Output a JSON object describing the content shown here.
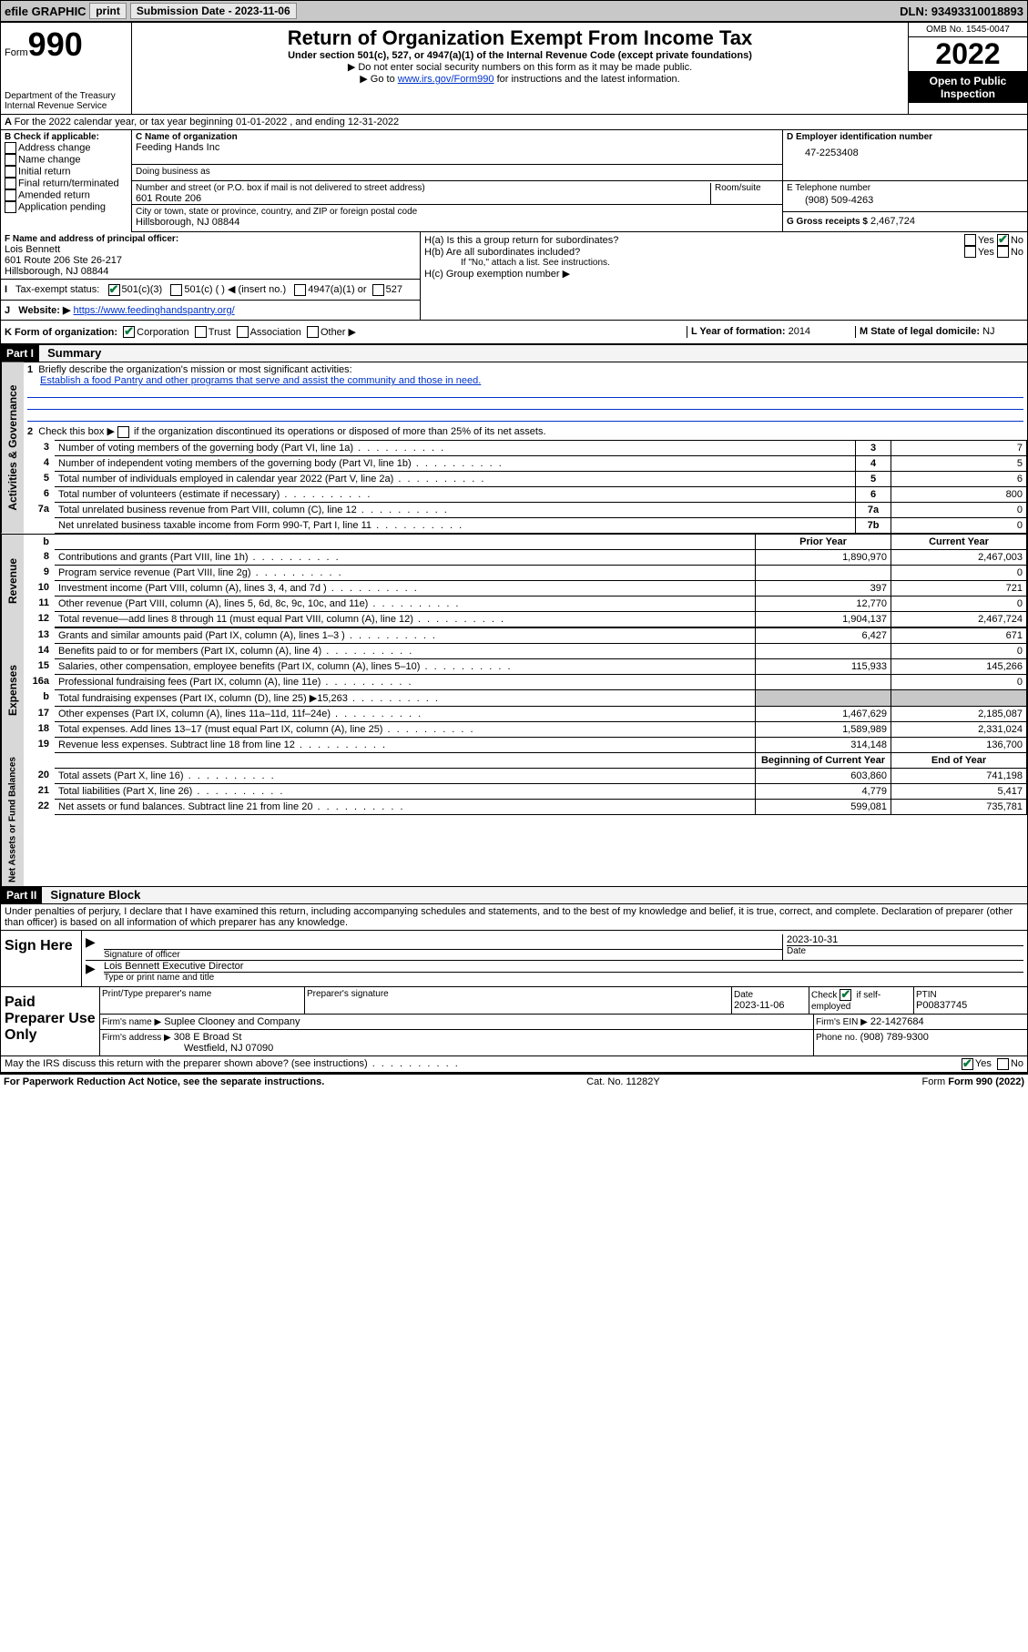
{
  "top_bar": {
    "efile": "efile GRAPHIC",
    "print": "print",
    "sub_label": "Submission Date -",
    "sub_date": "2023-11-06",
    "dln": "DLN: 93493310018893"
  },
  "header": {
    "form_word": "Form",
    "form_num": "990",
    "dept": "Department of the Treasury Internal Revenue Service",
    "title": "Return of Organization Exempt From Income Tax",
    "subtitle": "Under section 501(c), 527, or 4947(a)(1) of the Internal Revenue Code (except private foundations)",
    "note1": "▶ Do not enter social security numbers on this form as it may be made public.",
    "note2_pre": "▶ Go to ",
    "note2_link": "www.irs.gov/Form990",
    "note2_post": " for instructions and the latest information.",
    "omb": "OMB No. 1545-0047",
    "year": "2022",
    "open": "Open to Public Inspection"
  },
  "line_a": "For the 2022 calendar year, or tax year beginning 01-01-2022   , and ending 12-31-2022",
  "box_b": {
    "title": "B Check if applicable:",
    "items": [
      "Address change",
      "Name change",
      "Initial return",
      "Final return/terminated",
      "Amended return",
      "Application pending"
    ]
  },
  "box_c": {
    "label": "C Name of organization",
    "name": "Feeding Hands Inc",
    "dba_label": "Doing business as",
    "addr_label": "Number and street (or P.O. box if mail is not delivered to street address)",
    "room_label": "Room/suite",
    "addr": "601 Route 206",
    "city_label": "City or town, state or province, country, and ZIP or foreign postal code",
    "city": "Hillsborough, NJ  08844"
  },
  "box_d": {
    "label": "D Employer identification number",
    "ein": "47-2253408"
  },
  "box_e": {
    "label": "E Telephone number",
    "phone": "(908) 509-4263"
  },
  "box_g": {
    "label": "G Gross receipts $",
    "amount": "2,467,724"
  },
  "box_f": {
    "label": "F Name and address of principal officer:",
    "name": "Lois Bennett",
    "addr1": "601 Route 206 Ste 26-217",
    "addr2": "Hillsborough, NJ  08844"
  },
  "box_h": {
    "ha": "H(a)  Is this a group return for subordinates?",
    "hb": "H(b)  Are all subordinates included?",
    "hb_note": "If \"No,\" attach a list. See instructions.",
    "hc": "H(c)  Group exemption number ▶"
  },
  "box_i": {
    "label": "Tax-exempt status:",
    "opts": [
      "501(c)(3)",
      "501(c) (  ) ◀ (insert no.)",
      "4947(a)(1) or",
      "527"
    ]
  },
  "box_j": {
    "label": "Website: ▶",
    "url": "https://www.feedinghandspantry.org/"
  },
  "box_k": {
    "label": "K Form of organization:",
    "opts": [
      "Corporation",
      "Trust",
      "Association",
      "Other ▶"
    ]
  },
  "box_l": {
    "label": "L Year of formation:",
    "val": "2014"
  },
  "box_m": {
    "label": "M State of legal domicile:",
    "val": "NJ"
  },
  "part1": {
    "part": "Part I",
    "title": "Summary",
    "q1": "Briefly describe the organization's mission or most significant activities:",
    "q1_ans": "Establish a food Pantry and other programs that serve and assist the community and those in need.",
    "q2": "Check this box ▶",
    "q2b": "if the organization discontinued its operations or disposed of more than 25% of its net assets.",
    "rows_simple": [
      {
        "n": "3",
        "t": "Number of voting members of the governing body (Part VI, line 1a)",
        "k": "3",
        "v": "7"
      },
      {
        "n": "4",
        "t": "Number of independent voting members of the governing body (Part VI, line 1b)",
        "k": "4",
        "v": "5"
      },
      {
        "n": "5",
        "t": "Total number of individuals employed in calendar year 2022 (Part V, line 2a)",
        "k": "5",
        "v": "6"
      },
      {
        "n": "6",
        "t": "Total number of volunteers (estimate if necessary)",
        "k": "6",
        "v": "800"
      },
      {
        "n": "7a",
        "t": "Total unrelated business revenue from Part VIII, column (C), line 12",
        "k": "7a",
        "v": "0"
      },
      {
        "n": "",
        "t": "Net unrelated business taxable income from Form 990-T, Part I, line 11",
        "k": "7b",
        "v": "0"
      }
    ],
    "col_headers": {
      "b": "b",
      "prior": "Prior Year",
      "current": "Current Year",
      "begin": "Beginning of Current Year",
      "end": "End of Year"
    },
    "revenue_label": "Revenue",
    "expenses_label": "Expenses",
    "netassets_label": "Net Assets or Fund Balances",
    "activities_label": "Activities & Governance",
    "rows_rev": [
      {
        "n": "8",
        "t": "Contributions and grants (Part VIII, line 1h)",
        "p": "1,890,970",
        "c": "2,467,003"
      },
      {
        "n": "9",
        "t": "Program service revenue (Part VIII, line 2g)",
        "p": "",
        "c": "0"
      },
      {
        "n": "10",
        "t": "Investment income (Part VIII, column (A), lines 3, 4, and 7d )",
        "p": "397",
        "c": "721"
      },
      {
        "n": "11",
        "t": "Other revenue (Part VIII, column (A), lines 5, 6d, 8c, 9c, 10c, and 11e)",
        "p": "12,770",
        "c": "0"
      },
      {
        "n": "12",
        "t": "Total revenue—add lines 8 through 11 (must equal Part VIII, column (A), line 12)",
        "p": "1,904,137",
        "c": "2,467,724"
      }
    ],
    "rows_exp": [
      {
        "n": "13",
        "t": "Grants and similar amounts paid (Part IX, column (A), lines 1–3 )",
        "p": "6,427",
        "c": "671"
      },
      {
        "n": "14",
        "t": "Benefits paid to or for members (Part IX, column (A), line 4)",
        "p": "",
        "c": "0"
      },
      {
        "n": "15",
        "t": "Salaries, other compensation, employee benefits (Part IX, column (A), lines 5–10)",
        "p": "115,933",
        "c": "145,266"
      },
      {
        "n": "16a",
        "t": "Professional fundraising fees (Part IX, column (A), line 11e)",
        "p": "",
        "c": "0"
      },
      {
        "n": "b",
        "t": "Total fundraising expenses (Part IX, column (D), line 25) ▶15,263",
        "p": "shaded",
        "c": "shaded"
      },
      {
        "n": "17",
        "t": "Other expenses (Part IX, column (A), lines 11a–11d, 11f–24e)",
        "p": "1,467,629",
        "c": "2,185,087"
      },
      {
        "n": "18",
        "t": "Total expenses. Add lines 13–17 (must equal Part IX, column (A), line 25)",
        "p": "1,589,989",
        "c": "2,331,024"
      },
      {
        "n": "19",
        "t": "Revenue less expenses. Subtract line 18 from line 12",
        "p": "314,148",
        "c": "136,700"
      }
    ],
    "rows_net": [
      {
        "n": "20",
        "t": "Total assets (Part X, line 16)",
        "p": "603,860",
        "c": "741,198"
      },
      {
        "n": "21",
        "t": "Total liabilities (Part X, line 26)",
        "p": "4,779",
        "c": "5,417"
      },
      {
        "n": "22",
        "t": "Net assets or fund balances. Subtract line 21 from line 20",
        "p": "599,081",
        "c": "735,781"
      }
    ]
  },
  "part2": {
    "part": "Part II",
    "title": "Signature Block",
    "declaration": "Under penalties of perjury, I declare that I have examined this return, including accompanying schedules and statements, and to the best of my knowledge and belief, it is true, correct, and complete. Declaration of preparer (other than officer) is based on all information of which preparer has any knowledge.",
    "sign_here": "Sign Here",
    "sig_officer": "Signature of officer",
    "date_label": "Date",
    "sig_date": "2023-10-31",
    "officer_name": "Lois Bennett  Executive Director",
    "type_name": "Type or print name and title",
    "paid": "Paid Preparer Use Only",
    "prep_name_label": "Print/Type preparer's name",
    "prep_sig_label": "Preparer's signature",
    "prep_date_label": "Date",
    "prep_date": "2023-11-06",
    "check_if": "Check",
    "self_emp": "if self-employed",
    "ptin_label": "PTIN",
    "ptin": "P00837745",
    "firm_name_label": "Firm's name    ▶",
    "firm_name": "Suplee Clooney and Company",
    "firm_ein_label": "Firm's EIN ▶",
    "firm_ein": "22-1427684",
    "firm_addr_label": "Firm's address ▶",
    "firm_addr1": "308 E Broad St",
    "firm_addr2": "Westfield, NJ  07090",
    "phone_label": "Phone no.",
    "phone": "(908) 789-9300",
    "discuss": "May the IRS discuss this return with the preparer shown above? (see instructions)"
  },
  "footer": {
    "paperwork": "For Paperwork Reduction Act Notice, see the separate instructions.",
    "cat": "Cat. No. 11282Y",
    "form": "Form 990 (2022)"
  }
}
